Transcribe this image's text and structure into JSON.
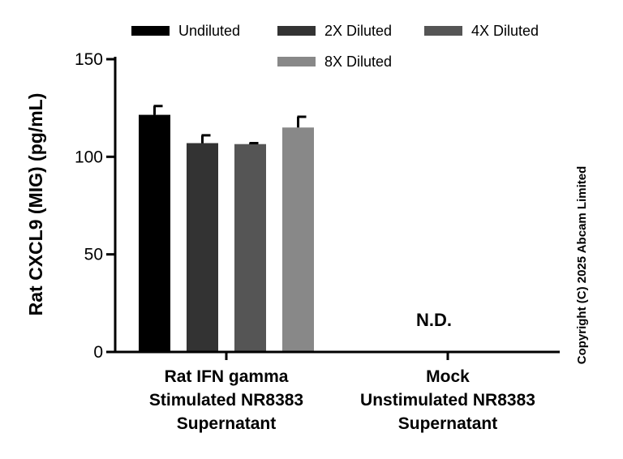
{
  "chart_data": {
    "type": "bar",
    "ylabel": "Rat CXCL9 (MIG) (pg/mL)",
    "ylim": [
      0,
      150
    ],
    "yticks": [
      "0",
      "50",
      "100",
      "150"
    ],
    "categories": [
      [
        "Rat IFN gamma",
        "Stimulated NR8383",
        "Supernatant"
      ],
      [
        "Mock",
        "Unstimulated NR8383",
        "Supernatant"
      ]
    ],
    "series": [
      {
        "name": "Undiluted",
        "color": "#000000",
        "values": [
          121.5,
          null
        ],
        "errors": [
          4.5,
          null
        ]
      },
      {
        "name": "2X Diluted",
        "color": "#333333",
        "values": [
          107,
          null
        ],
        "errors": [
          4.0,
          null
        ]
      },
      {
        "name": "4X Diluted",
        "color": "#555555",
        "values": [
          106.5,
          null
        ],
        "errors": [
          0.5,
          null
        ]
      },
      {
        "name": "8X Diluted",
        "color": "#888888",
        "values": [
          115,
          null
        ],
        "errors": [
          5.5,
          null
        ]
      }
    ],
    "annotations": [
      {
        "category_index": 1,
        "text": "N.D."
      }
    ],
    "legend_position": "top",
    "grid": false
  },
  "copyright": "Copyright (C) 2025 Abcam Limited"
}
